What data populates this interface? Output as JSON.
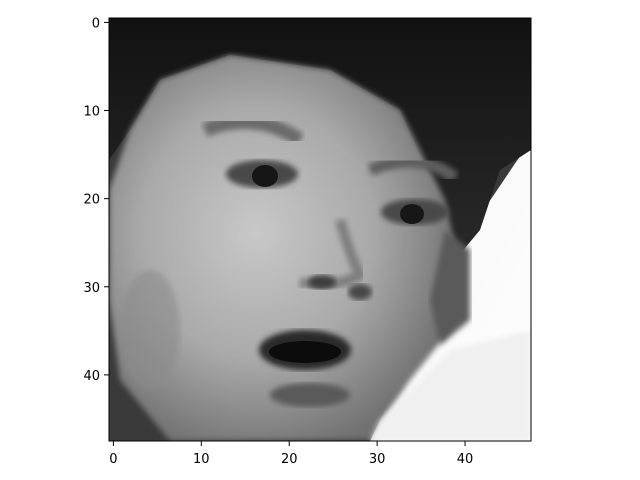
{
  "figure": {
    "background": "#ffffff",
    "image_kind": "grayscale pixel image of a child's face with surprised expression",
    "image_resolution": [
      48,
      48
    ],
    "colormap": "gray"
  },
  "chart_data": {
    "type": "heatmap",
    "title": "",
    "xlabel": "",
    "ylabel": "",
    "xlim": [
      -0.5,
      47.5
    ],
    "ylim": [
      47.5,
      -0.5
    ],
    "x_ticks": [
      0,
      10,
      20,
      30,
      40
    ],
    "y_ticks": [
      0,
      10,
      20,
      30,
      40
    ],
    "x_tick_labels": [
      "0",
      "10",
      "20",
      "30",
      "40"
    ],
    "y_tick_labels": [
      "0",
      "10",
      "20",
      "30",
      "40"
    ],
    "grid": false,
    "legend": "none"
  }
}
